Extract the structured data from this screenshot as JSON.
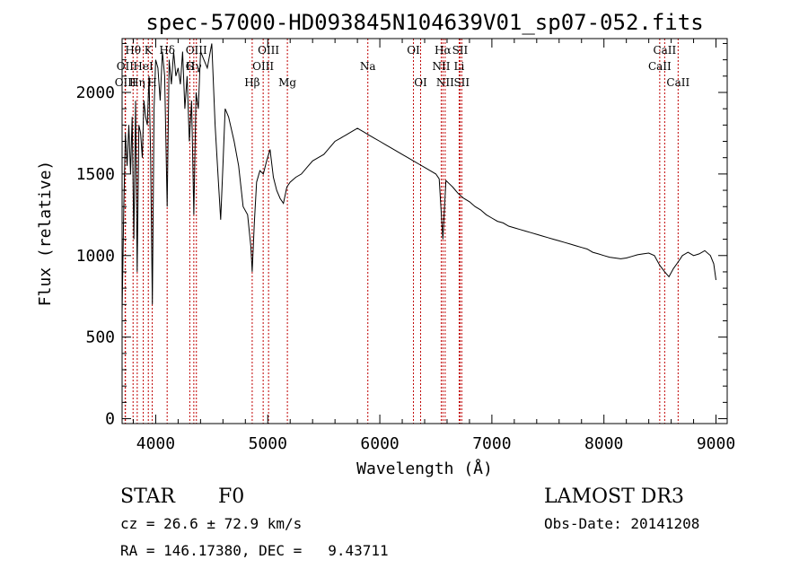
{
  "chart_data": {
    "type": "line",
    "title": "spec-57000-HD093845N104639V01_sp07-052.fits",
    "xlabel": "Wavelength (Å)",
    "ylabel": "Flux (relative)",
    "xlim": [
      3700,
      9100
    ],
    "ylim": [
      -30,
      2330
    ],
    "xticks": [
      4000,
      5000,
      6000,
      7000,
      8000,
      9000
    ],
    "xtick_labels": [
      "4000",
      "5000",
      "6000",
      "7000",
      "8000",
      "9000"
    ],
    "yticks": [
      0,
      500,
      1000,
      1500,
      2000
    ],
    "ytick_labels": [
      "0",
      "500",
      "1000",
      "1500",
      "2000"
    ],
    "grid": false,
    "series": [
      {
        "name": "",
        "color": "#000000",
        "x": [
          3700,
          3715,
          3730,
          3745,
          3760,
          3775,
          3790,
          3805,
          3820,
          3835,
          3850,
          3865,
          3880,
          3895,
          3910,
          3925,
          3940,
          3955,
          3970,
          3985,
          4000,
          4020,
          4040,
          4060,
          4080,
          4102,
          4120,
          4140,
          4160,
          4180,
          4200,
          4220,
          4240,
          4260,
          4280,
          4300,
          4320,
          4340,
          4360,
          4380,
          4400,
          4430,
          4460,
          4500,
          4530,
          4560,
          4580,
          4600,
          4620,
          4650,
          4700,
          4740,
          4780,
          4820,
          4850,
          4861,
          4880,
          4900,
          4930,
          4960,
          4990,
          5020,
          5050,
          5080,
          5110,
          5140,
          5170,
          5200,
          5250,
          5300,
          5350,
          5400,
          5450,
          5500,
          5550,
          5600,
          5650,
          5700,
          5750,
          5800,
          5850,
          5900,
          5950,
          6000,
          6050,
          6100,
          6150,
          6200,
          6250,
          6300,
          6350,
          6400,
          6450,
          6500,
          6530,
          6563,
          6590,
          6620,
          6650,
          6700,
          6750,
          6800,
          6850,
          6900,
          6950,
          7000,
          7050,
          7100,
          7150,
          7200,
          7250,
          7300,
          7350,
          7400,
          7450,
          7500,
          7550,
          7600,
          7650,
          7700,
          7750,
          7800,
          7850,
          7900,
          7950,
          8000,
          8050,
          8100,
          8150,
          8200,
          8250,
          8300,
          8350,
          8400,
          8450,
          8498,
          8542,
          8580,
          8620,
          8662,
          8700,
          8750,
          8800,
          8850,
          8900,
          8950,
          8980,
          9000
        ],
        "y": [
          650,
          1300,
          1750,
          1550,
          1800,
          1500,
          1850,
          1100,
          1950,
          900,
          1800,
          1750,
          1600,
          1950,
          1850,
          1800,
          2100,
          1600,
          700,
          1900,
          2200,
          2150,
          1950,
          2250,
          2100,
          1300,
          2200,
          2050,
          2250,
          2100,
          2150,
          2050,
          2250,
          1900,
          2100,
          1700,
          1950,
          1250,
          2000,
          1900,
          2250,
          2200,
          2150,
          2300,
          1800,
          1450,
          1220,
          1550,
          1900,
          1850,
          1700,
          1550,
          1300,
          1250,
          1050,
          900,
          1200,
          1450,
          1520,
          1500,
          1580,
          1650,
          1480,
          1400,
          1350,
          1320,
          1420,
          1450,
          1480,
          1500,
          1540,
          1580,
          1600,
          1620,
          1660,
          1700,
          1720,
          1740,
          1760,
          1780,
          1760,
          1740,
          1720,
          1700,
          1680,
          1660,
          1640,
          1620,
          1600,
          1580,
          1560,
          1540,
          1520,
          1500,
          1470,
          1100,
          1460,
          1440,
          1420,
          1380,
          1350,
          1330,
          1300,
          1280,
          1250,
          1230,
          1210,
          1200,
          1180,
          1170,
          1160,
          1150,
          1140,
          1130,
          1120,
          1110,
          1100,
          1090,
          1080,
          1070,
          1060,
          1050,
          1040,
          1020,
          1010,
          1000,
          990,
          985,
          980,
          985,
          995,
          1005,
          1010,
          1015,
          1000,
          940,
          900,
          870,
          920,
          960,
          1000,
          1020,
          1000,
          1010,
          1030,
          1000,
          950,
          850
        ]
      }
    ],
    "line_markers": [
      {
        "label": "Hθ",
        "x": 3798,
        "row": 1
      },
      {
        "label": "OII",
        "x": 3727,
        "row": 2
      },
      {
        "label": "OIII",
        "x": 3730,
        "row": 3
      },
      {
        "label": "K",
        "x": 3934,
        "row": 1
      },
      {
        "label": "HeI",
        "x": 3889,
        "row": 2
      },
      {
        "label": "Hη",
        "x": 3835,
        "row": 3
      },
      {
        "label": "H",
        "x": 3969,
        "row": 3
      },
      {
        "label": "Hδ",
        "x": 4102,
        "row": 1
      },
      {
        "label": "OIII",
        "x": 4363,
        "row": 1
      },
      {
        "label": "Hγ",
        "x": 4340,
        "row": 2
      },
      {
        "label": "G",
        "x": 4304,
        "row": 2
      },
      {
        "label": "OIII",
        "x": 5007,
        "row": 1
      },
      {
        "label": "OIII",
        "x": 4959,
        "row": 2
      },
      {
        "label": "Hβ",
        "x": 4861,
        "row": 3
      },
      {
        "label": "Mg",
        "x": 5175,
        "row": 3
      },
      {
        "label": "Na",
        "x": 5893,
        "row": 2
      },
      {
        "label": "OI",
        "x": 6300,
        "row": 1
      },
      {
        "label": "OI",
        "x": 6364,
        "row": 3
      },
      {
        "label": "Hα",
        "x": 6563,
        "row": 1
      },
      {
        "label": "SII",
        "x": 6716,
        "row": 1
      },
      {
        "label": "NII",
        "x": 6548,
        "row": 2
      },
      {
        "label": "Li",
        "x": 6708,
        "row": 2
      },
      {
        "label": "NII",
        "x": 6583,
        "row": 3
      },
      {
        "label": "SII",
        "x": 6731,
        "row": 3
      },
      {
        "label": "CaII",
        "x": 8542,
        "row": 1
      },
      {
        "label": "CaII",
        "x": 8498,
        "row": 2
      },
      {
        "label": "CaII",
        "x": 8662,
        "row": 3
      }
    ],
    "marker_color": "#c00000"
  },
  "info": {
    "class_label": "STAR",
    "subclass_label": "F0",
    "survey": "LAMOST DR3",
    "redshift": "cz = 26.6 ± 72.9 km/s",
    "obs_date": "Obs-Date: 20141208",
    "coords": "RA = 146.17380, DEC =   9.43711"
  }
}
